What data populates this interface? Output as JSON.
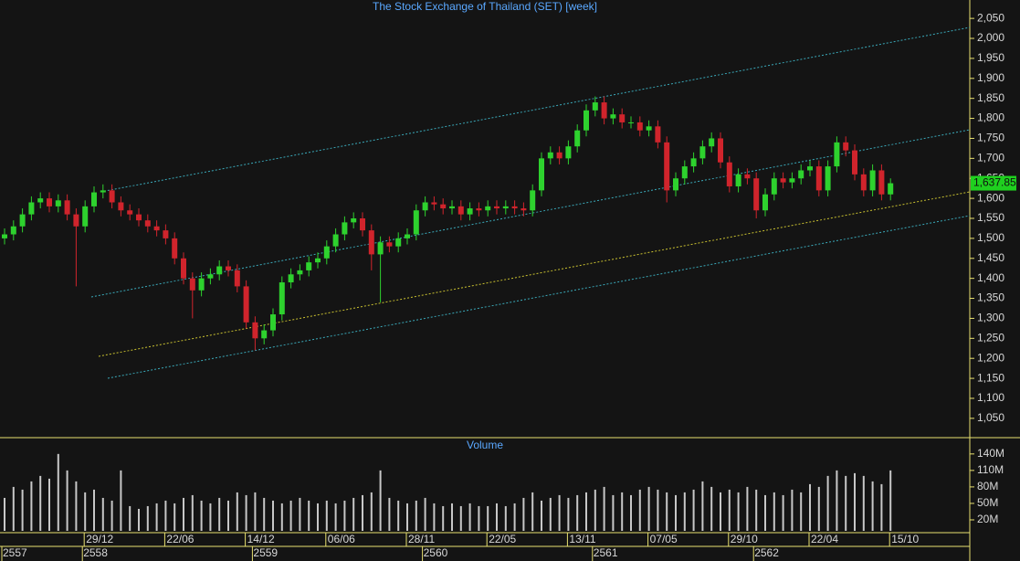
{
  "chart_data": {
    "type": "candlestick",
    "title": "The Stock Exchange of Thailand (SET) [week]",
    "categories": [
      null,
      null,
      null,
      null,
      null,
      null,
      null,
      null,
      null,
      "29/12",
      null,
      null,
      null,
      null,
      null,
      null,
      null,
      null,
      "22/06",
      null,
      null,
      null,
      null,
      null,
      null,
      null,
      null,
      "14/12",
      null,
      null,
      null,
      null,
      null,
      null,
      null,
      null,
      "06/06",
      null,
      null,
      null,
      null,
      null,
      null,
      null,
      null,
      "28/11",
      null,
      null,
      null,
      null,
      null,
      null,
      null,
      null,
      "22/05",
      null,
      null,
      null,
      null,
      null,
      null,
      null,
      null,
      "13/11",
      null,
      null,
      null,
      null,
      null,
      null,
      null,
      null,
      "07/05",
      null,
      null,
      null,
      null,
      null,
      null,
      null,
      null,
      "29/10",
      null,
      null,
      null,
      null,
      null,
      null,
      null,
      null,
      "22/04",
      null,
      null,
      null,
      null,
      null,
      null,
      null,
      null,
      "15/10"
    ],
    "years": [
      "2557",
      null,
      null,
      null,
      null,
      null,
      null,
      null,
      null,
      "2558",
      null,
      null,
      null,
      null,
      null,
      null,
      null,
      null,
      null,
      null,
      null,
      null,
      null,
      null,
      null,
      null,
      null,
      null,
      "2559",
      null,
      null,
      null,
      null,
      null,
      null,
      null,
      null,
      null,
      null,
      null,
      null,
      null,
      null,
      null,
      null,
      null,
      null,
      "2560",
      null,
      null,
      null,
      null,
      null,
      null,
      null,
      null,
      null,
      null,
      null,
      null,
      null,
      null,
      null,
      null,
      null,
      null,
      "2561",
      null,
      null,
      null,
      null,
      null,
      null,
      null,
      null,
      null,
      null,
      null,
      null,
      null,
      null,
      null,
      null,
      null,
      "2562",
      null,
      null,
      null,
      null,
      null,
      null,
      null,
      null,
      null,
      null,
      null,
      null,
      null,
      null,
      null
    ],
    "open": [
      1500,
      1510,
      1530,
      1560,
      1590,
      1600,
      1580,
      1595,
      1560,
      1530,
      1580,
      1615,
      1620,
      1590,
      1570,
      1560,
      1545,
      1530,
      1520,
      1500,
      1450,
      1400,
      1370,
      1400,
      1410,
      1430,
      1420,
      1380,
      1290,
      1250,
      1270,
      1310,
      1390,
      1410,
      1420,
      1440,
      1450,
      1480,
      1510,
      1540,
      1550,
      1520,
      1460,
      1490,
      1480,
      1500,
      1510,
      1570,
      1590,
      1585,
      1575,
      1580,
      1560,
      1575,
      1570,
      1580,
      1575,
      1580,
      1575,
      1570,
      1620,
      1700,
      1715,
      1700,
      1730,
      1770,
      1820,
      1840,
      1800,
      1810,
      1790,
      1790,
      1770,
      1780,
      1740,
      1620,
      1650,
      1680,
      1700,
      1730,
      1750,
      1690,
      1630,
      1660,
      1650,
      1570,
      1610,
      1650,
      1640,
      1650,
      1670,
      1680,
      1620,
      1680,
      1740,
      1720,
      1660,
      1620,
      1670,
      1610
    ],
    "high": [
      1525,
      1545,
      1575,
      1605,
      1615,
      1615,
      1610,
      1610,
      1575,
      1595,
      1630,
      1635,
      1635,
      1605,
      1585,
      1575,
      1560,
      1545,
      1535,
      1515,
      1465,
      1415,
      1415,
      1425,
      1445,
      1445,
      1435,
      1395,
      1305,
      1285,
      1325,
      1405,
      1425,
      1435,
      1455,
      1465,
      1495,
      1525,
      1555,
      1565,
      1565,
      1535,
      1505,
      1505,
      1515,
      1525,
      1585,
      1605,
      1605,
      1600,
      1595,
      1595,
      1590,
      1590,
      1595,
      1595,
      1595,
      1595,
      1590,
      1635,
      1715,
      1730,
      1730,
      1745,
      1785,
      1835,
      1855,
      1855,
      1825,
      1825,
      1805,
      1805,
      1795,
      1795,
      1755,
      1665,
      1695,
      1715,
      1745,
      1765,
      1765,
      1705,
      1675,
      1675,
      1665,
      1625,
      1665,
      1665,
      1665,
      1685,
      1695,
      1695,
      1695,
      1755,
      1755,
      1735,
      1675,
      1685,
      1685,
      1650
    ],
    "low": [
      1485,
      1495,
      1515,
      1545,
      1575,
      1565,
      1565,
      1545,
      1380,
      1515,
      1565,
      1600,
      1575,
      1555,
      1545,
      1530,
      1515,
      1505,
      1485,
      1435,
      1385,
      1300,
      1355,
      1385,
      1395,
      1405,
      1365,
      1275,
      1220,
      1235,
      1255,
      1295,
      1375,
      1395,
      1405,
      1425,
      1435,
      1465,
      1495,
      1525,
      1505,
      1420,
      1340,
      1465,
      1465,
      1485,
      1495,
      1555,
      1570,
      1560,
      1560,
      1545,
      1545,
      1555,
      1555,
      1560,
      1560,
      1560,
      1555,
      1555,
      1605,
      1685,
      1685,
      1685,
      1715,
      1755,
      1805,
      1785,
      1785,
      1775,
      1775,
      1755,
      1755,
      1725,
      1590,
      1605,
      1635,
      1665,
      1685,
      1715,
      1675,
      1615,
      1615,
      1635,
      1550,
      1555,
      1595,
      1625,
      1625,
      1635,
      1655,
      1605,
      1605,
      1665,
      1705,
      1645,
      1605,
      1605,
      1595,
      1595
    ],
    "close": [
      1510,
      1530,
      1560,
      1590,
      1600,
      1580,
      1595,
      1560,
      1530,
      1580,
      1615,
      1620,
      1590,
      1570,
      1560,
      1545,
      1530,
      1520,
      1500,
      1450,
      1400,
      1370,
      1400,
      1410,
      1430,
      1420,
      1380,
      1290,
      1250,
      1270,
      1310,
      1390,
      1410,
      1420,
      1440,
      1450,
      1480,
      1510,
      1540,
      1550,
      1520,
      1460,
      1490,
      1480,
      1500,
      1510,
      1570,
      1590,
      1585,
      1575,
      1580,
      1560,
      1575,
      1570,
      1580,
      1575,
      1580,
      1575,
      1570,
      1620,
      1700,
      1715,
      1700,
      1730,
      1770,
      1820,
      1840,
      1800,
      1810,
      1790,
      1790,
      1770,
      1780,
      1740,
      1620,
      1650,
      1680,
      1700,
      1730,
      1750,
      1690,
      1630,
      1660,
      1650,
      1570,
      1610,
      1650,
      1640,
      1650,
      1670,
      1680,
      1620,
      1680,
      1740,
      1720,
      1660,
      1620,
      1670,
      1610,
      1637.85
    ],
    "up_color": "#2ed22e",
    "down_color": "#d0242c",
    "ylim": [
      1004,
      2096
    ],
    "yticks": [
      {
        "value": 1050,
        "label": "1,050"
      },
      {
        "value": 1100,
        "label": "1,100"
      },
      {
        "value": 1150,
        "label": "1,150"
      },
      {
        "value": 1200,
        "label": "1,200"
      },
      {
        "value": 1250,
        "label": "1,250"
      },
      {
        "value": 1300,
        "label": "1,300"
      },
      {
        "value": 1350,
        "label": "1,350"
      },
      {
        "value": 1400,
        "label": "1,400"
      },
      {
        "value": 1450,
        "label": "1,450"
      },
      {
        "value": 1500,
        "label": "1,500"
      },
      {
        "value": 1550,
        "label": "1,550"
      },
      {
        "value": 1600,
        "label": "1,600"
      },
      {
        "value": 1650,
        "label": "1,650"
      },
      {
        "value": 1700,
        "label": "1,700"
      },
      {
        "value": 1750,
        "label": "1,750"
      },
      {
        "value": 1800,
        "label": "1,800"
      },
      {
        "value": 1850,
        "label": "1,850"
      },
      {
        "value": 1900,
        "label": "1,900"
      },
      {
        "value": 1950,
        "label": "1,950"
      },
      {
        "value": 2000,
        "label": "2,000"
      },
      {
        "value": 2050,
        "label": "2,050"
      }
    ],
    "last_value": {
      "value": 1637.85,
      "label": "1,637.85"
    },
    "volume": {
      "title": "Volume",
      "color": "#c8c8c8",
      "values": [
        60,
        80,
        75,
        90,
        100,
        95,
        140,
        110,
        90,
        70,
        75,
        60,
        55,
        110,
        45,
        40,
        45,
        50,
        55,
        50,
        60,
        65,
        55,
        50,
        60,
        55,
        70,
        65,
        70,
        60,
        55,
        50,
        55,
        60,
        55,
        50,
        55,
        50,
        55,
        60,
        65,
        70,
        110,
        60,
        55,
        50,
        55,
        60,
        50,
        45,
        50,
        45,
        50,
        45,
        45,
        50,
        45,
        50,
        60,
        70,
        55,
        60,
        65,
        60,
        65,
        70,
        75,
        80,
        65,
        70,
        65,
        75,
        80,
        75,
        70,
        65,
        70,
        75,
        90,
        80,
        70,
        75,
        70,
        80,
        75,
        65,
        70,
        65,
        75,
        70,
        85,
        80,
        100,
        110,
        100,
        105,
        100,
        90,
        85,
        110
      ],
      "ylim": [
        0,
        168
      ],
      "yticks": [
        {
          "value": 20,
          "label": "20M"
        },
        {
          "value": 50,
          "label": "50M"
        },
        {
          "value": 80,
          "label": "80M"
        },
        {
          "value": 110,
          "label": "110M"
        },
        {
          "value": 140,
          "label": "140M"
        }
      ]
    }
  }
}
